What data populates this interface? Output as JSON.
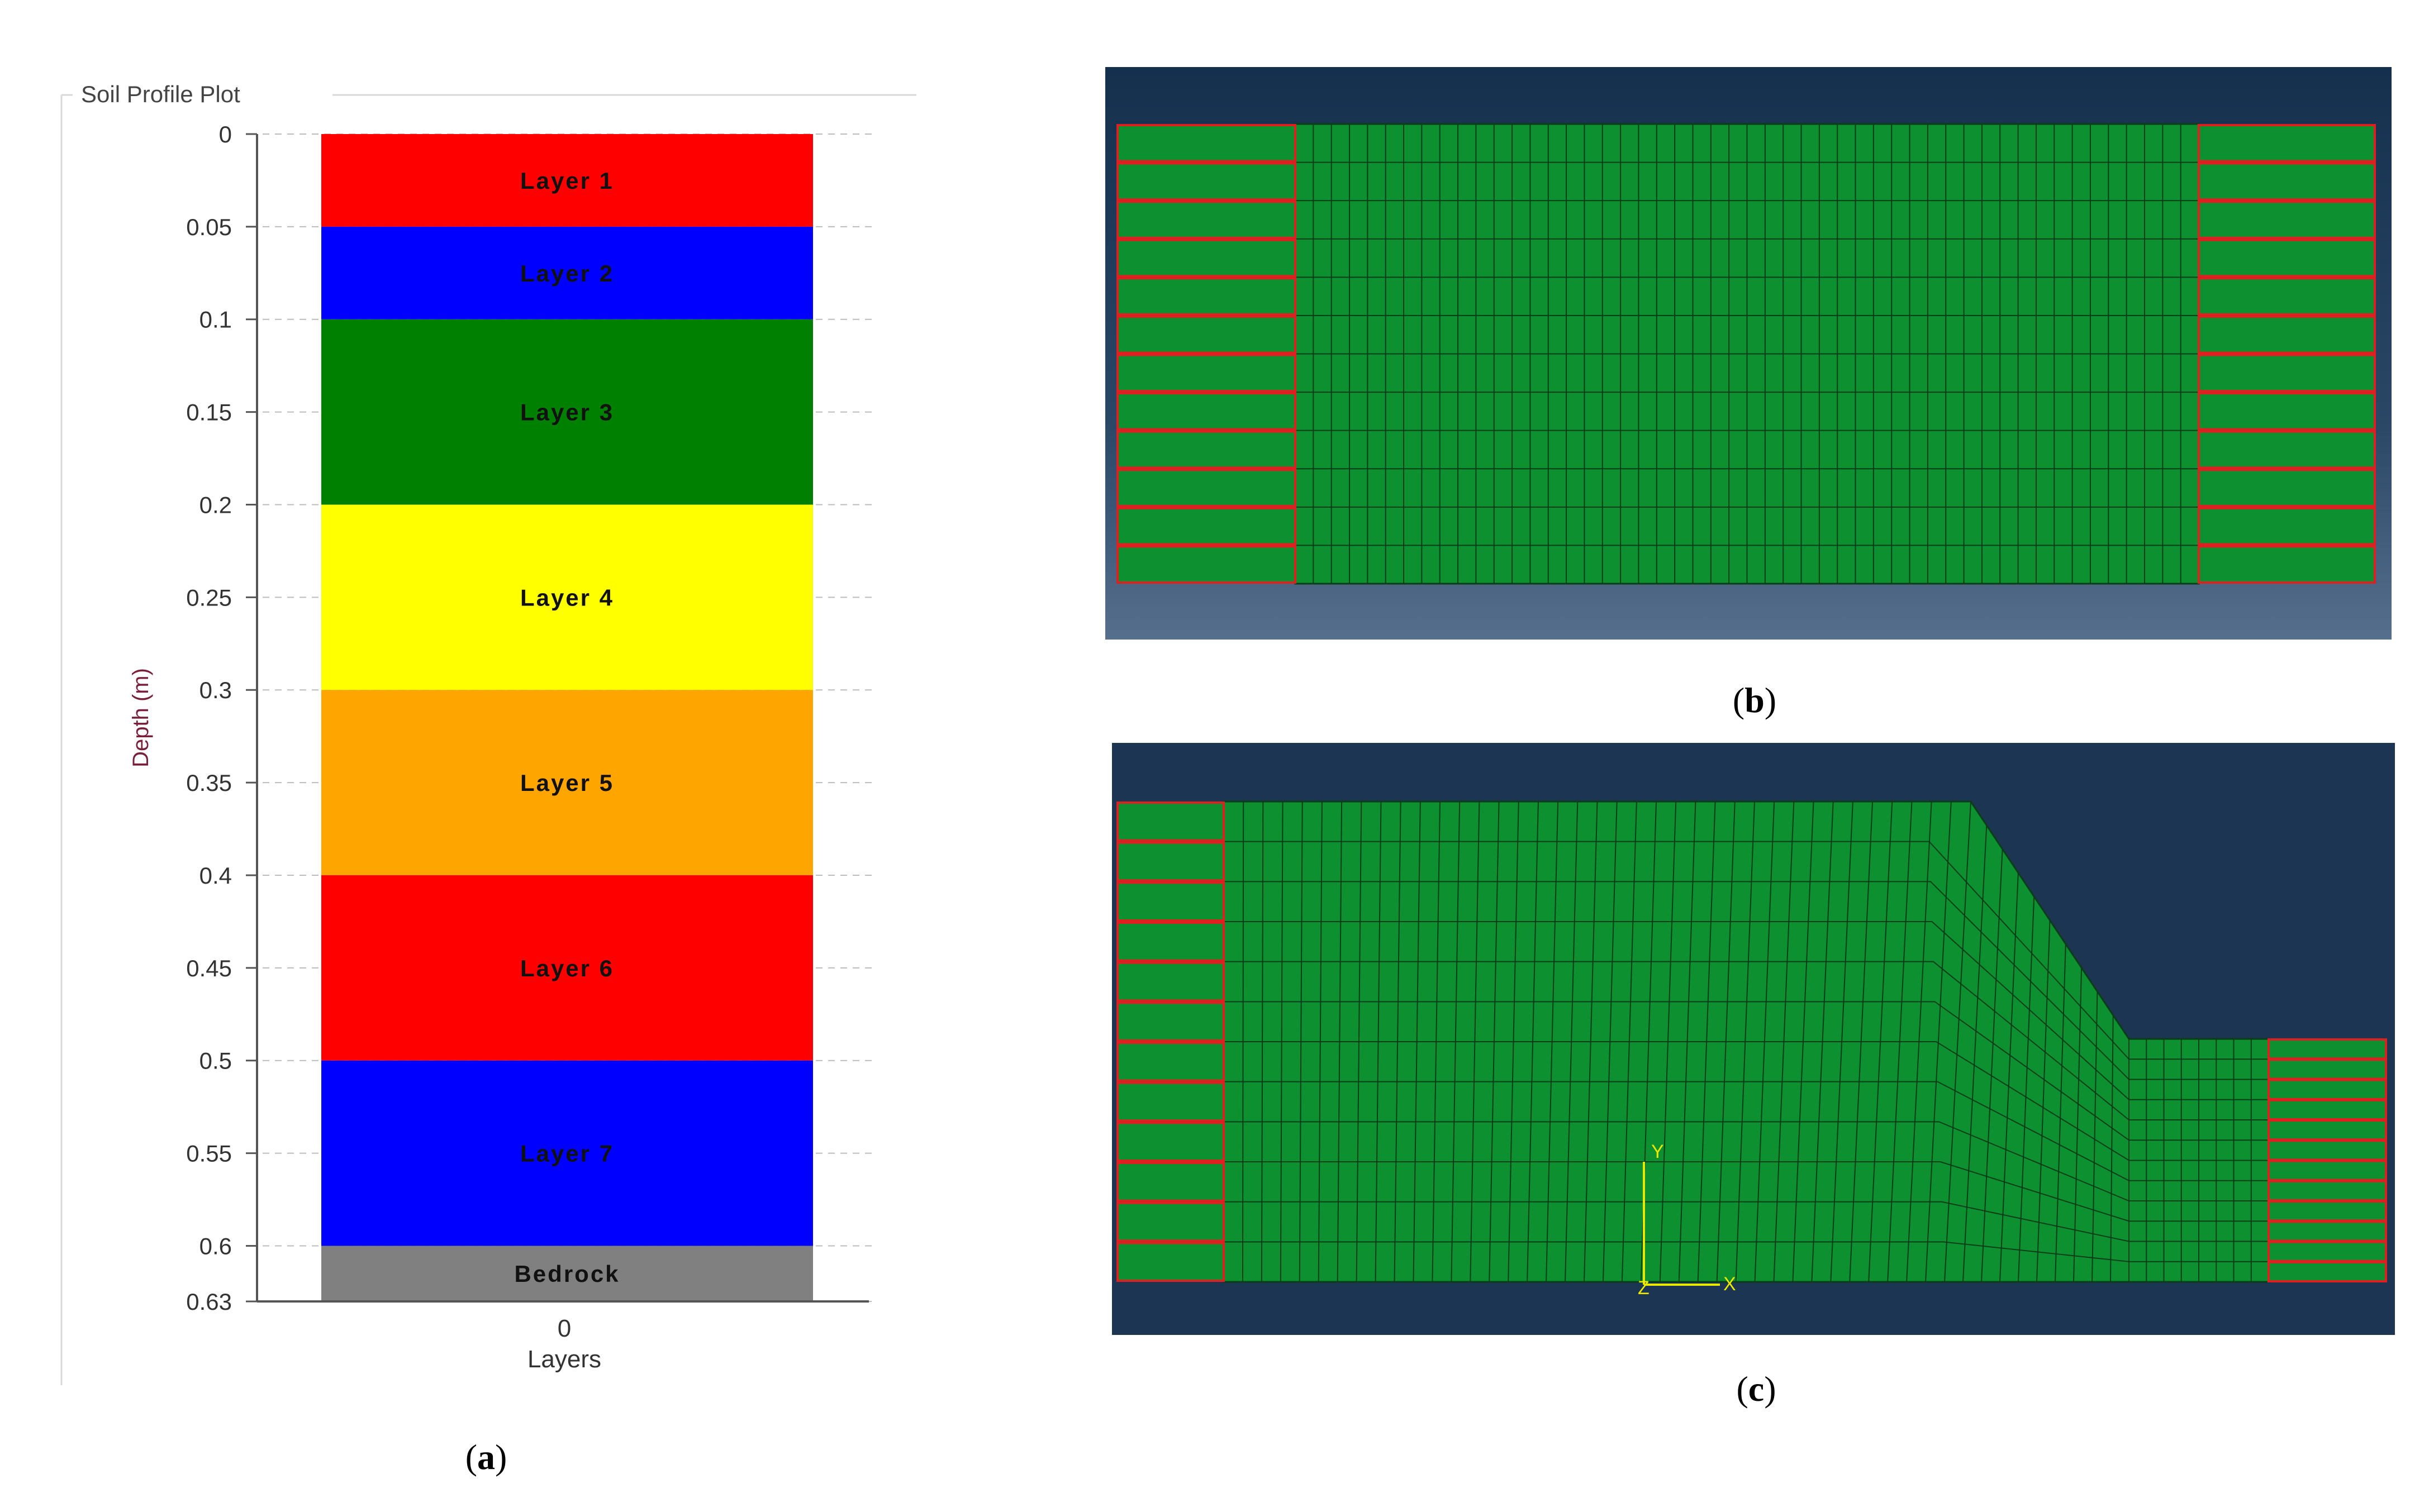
{
  "panel_a": {
    "group_label": "Soil Profile Plot",
    "caption_letter": "a",
    "layer_colors": [
      "#ff0000",
      "#0000ff",
      "#008000",
      "#ffff00",
      "#ffa500",
      "#ff0000",
      "#0000ff",
      "#808080"
    ]
  },
  "chart_data": {
    "type": "bar",
    "title": "",
    "xlabel": "Layers",
    "ylabel": "Depth (m)",
    "x_ticks": [
      "0"
    ],
    "y_ticks": [
      "0",
      "0.05",
      "0.1",
      "0.15",
      "0.2",
      "0.25",
      "0.3",
      "0.35",
      "0.4",
      "0.45",
      "0.5",
      "0.55",
      "0.6",
      "0.63"
    ],
    "ylim": [
      0,
      0.63
    ],
    "y_inverted": true,
    "grid": "horizontal dashed",
    "layers": [
      {
        "name": "Layer 1",
        "top": 0,
        "bottom": 0.05
      },
      {
        "name": "Layer 2",
        "top": 0.05,
        "bottom": 0.1
      },
      {
        "name": "Layer 3",
        "top": 0.1,
        "bottom": 0.2
      },
      {
        "name": "Layer 4",
        "top": 0.2,
        "bottom": 0.3
      },
      {
        "name": "Layer 5",
        "top": 0.3,
        "bottom": 0.4
      },
      {
        "name": "Layer 6",
        "top": 0.4,
        "bottom": 0.5
      },
      {
        "name": "Layer 7",
        "top": 0.5,
        "bottom": 0.6
      },
      {
        "name": "Bedrock",
        "top": 0.6,
        "bottom": 0.63
      }
    ]
  },
  "panel_b": {
    "caption_letter": "b",
    "mesh_color": "#0c9030",
    "boundary_color": "#e02020",
    "background_color": "#1b3553"
  },
  "panel_c": {
    "caption_letter": "c",
    "mesh_color": "#0c9030",
    "boundary_color": "#e02020",
    "background_color": "#1b3553",
    "axis_labels": {
      "y": "Y",
      "z": "Z",
      "x": "X"
    }
  }
}
